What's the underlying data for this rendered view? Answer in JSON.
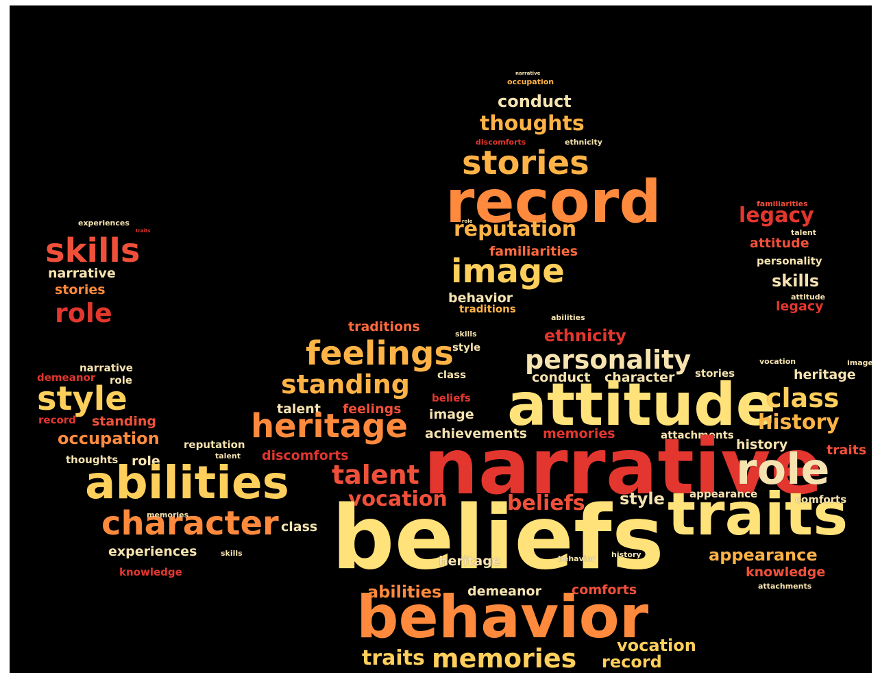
{
  "words": {
    "narrative_top": "narrative",
    "occupation_top": "occupation",
    "conduct": "conduct",
    "thoughts": "thoughts",
    "discomforts_head": "discomforts",
    "ethnicity_head": "ethnicity",
    "stories_head": "stories",
    "record_head": "record",
    "role_head": "role",
    "reputation": "reputation",
    "familiarities_head": "familiarities",
    "image_head": "image",
    "behavior_neck": "behavior",
    "traditions_neck": "traditions",
    "abilities_neck": "abilities",
    "skills_neck": "skills",
    "style_neck": "style",
    "experiences_left": "experiences",
    "traits_left": "traits",
    "skills_left": "skills",
    "narrative_left": "narrative",
    "stories_left": "stories",
    "role_left": "role",
    "narrative_arm": "narrative",
    "demeanor_arm": "demeanor",
    "role_arm": "role",
    "style_arm": "style",
    "record_arm": "record",
    "standing_arm": "standing",
    "occupation_arm": "occupation",
    "thoughts_arm": "thoughts",
    "role_arm2": "role",
    "reputation_arm": "reputation",
    "talent_arm": "talent",
    "abilities_big": "abilities",
    "character_big": "character",
    "class_arm": "class",
    "experiences_arm": "experiences",
    "skills_arm": "skills",
    "knowledge_arm": "knowledge",
    "memories_arm": "memories",
    "traditions_body": "traditions",
    "feelings_body": "feelings",
    "standing_body": "standing",
    "talent_body": "talent",
    "feelings_body2": "feelings",
    "heritage_body": "heritage",
    "discomforts_body": "discomforts",
    "talent_big": "talent",
    "vocation_body": "vocation",
    "ethnicity_body": "ethnicity",
    "personality_body": "personality",
    "conduct_body": "conduct",
    "character_body": "character",
    "stories_body": "stories",
    "class_body": "class",
    "beliefs_small": "beliefs",
    "image_body": "image",
    "attitude_big": "attitude",
    "achievements": "achievements",
    "memories_body": "memories",
    "attachments_body": "attachments",
    "narrative_big": "narrative",
    "role_big": "role",
    "beliefs_mid": "beliefs",
    "style_body": "style",
    "appearance_body": "appearance",
    "traits_big": "traits",
    "beliefs_huge": "beliefs",
    "abilities_low": "abilities",
    "demeanor_low": "demeanor",
    "comforts_low": "comforts",
    "behavior_big": "behavior",
    "traits_bottom": "traits",
    "memories_bottom": "memories",
    "record_bottom": "record",
    "vocation_bottom": "vocation",
    "heritage_low": "heritage",
    "behavior_low": "behavior",
    "history_low": "history",
    "familiarities_right": "familiarities",
    "legacy_right": "legacy",
    "talent_right": "talent",
    "attitude_right": "attitude",
    "personality_right": "personality",
    "skills_right": "skills",
    "attitude_right2": "attitude",
    "legacy_right2": "legacy",
    "image_right": "image",
    "heritage_right": "heritage",
    "vocation_right": "vocation",
    "class_right": "class",
    "history_right": "history",
    "history_right2": "history",
    "traits_right": "traits",
    "comforts_right": "comforts",
    "appearance_right": "appearance",
    "knowledge_right": "knowledge",
    "attachments_right": "attachments",
    "appearance_mid": "appearance"
  },
  "colors": {
    "background": "#000000",
    "frame": "#ffffff",
    "light_yellow": "#ffe27a",
    "orange": "#ff8a3d",
    "red": "#e2362e"
  }
}
